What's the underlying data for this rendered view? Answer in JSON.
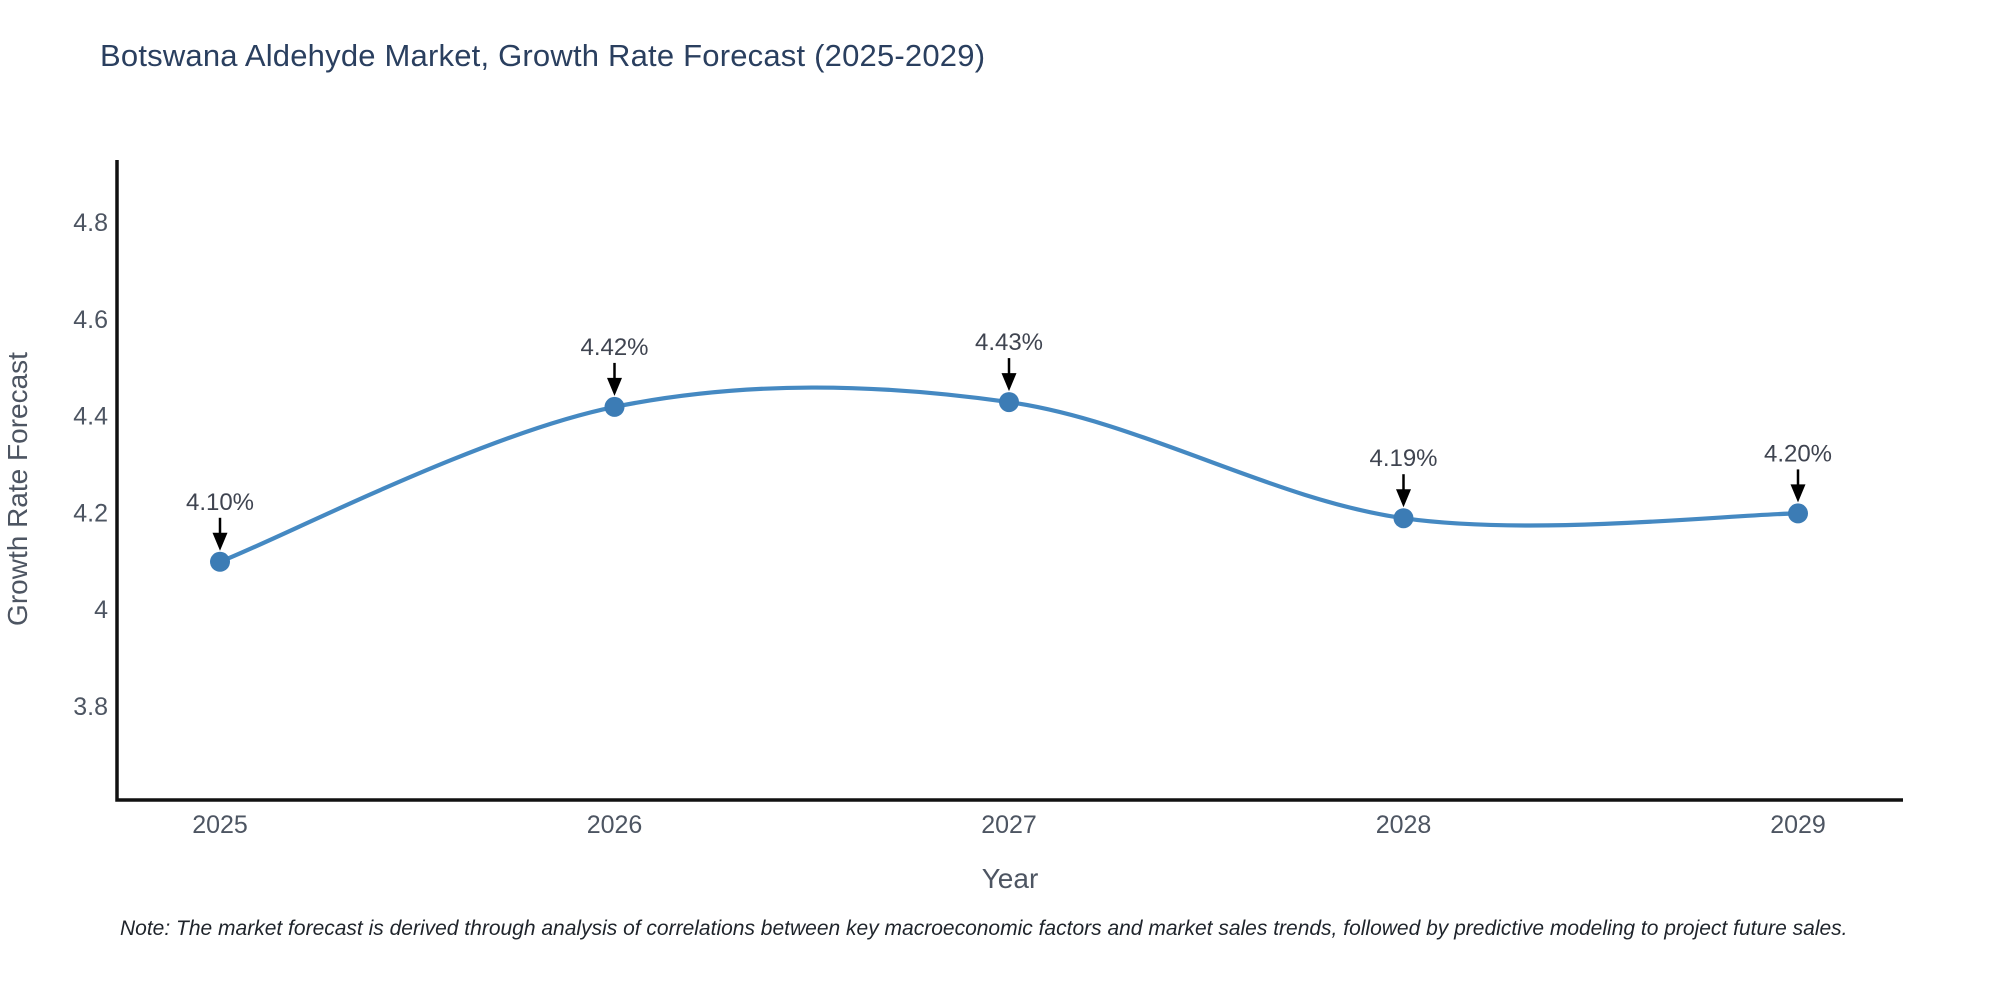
{
  "chart_data": {
    "type": "line",
    "line_shape": "spline",
    "title": "Botswana Aldehyde Market, Growth Rate Forecast (2025-2029)",
    "xlabel": "Year",
    "ylabel": "Growth Rate Forecast",
    "categories": [
      "2025",
      "2026",
      "2027",
      "2028",
      "2029"
    ],
    "series": [
      {
        "name": "Growth Rate Forecast",
        "values": [
          4.1,
          4.42,
          4.43,
          4.19,
          4.2
        ],
        "point_labels": [
          "4.10%",
          "4.42%",
          "4.43%",
          "4.19%",
          "4.20%"
        ]
      }
    ],
    "yticks": [
      4.8,
      4.6,
      4.4,
      4.2,
      4,
      3.8
    ],
    "ytick_labels": [
      "4.8",
      "4.6",
      "4.4",
      "4.2",
      "4",
      "3.8"
    ],
    "yaxis_range": [
      3.6,
      4.93
    ],
    "grid": "off",
    "legend": "none",
    "annotations_style": "value labels with downward black arrows above each point",
    "note": "Note: The market forecast is derived through analysis of correlations between key macroeconomic factors and market sales trends, followed by predictive modeling to project future sales.",
    "colors": {
      "line": "#4589c2",
      "marker": "#3c7cb5",
      "axis": "#111111",
      "title": "#2a3f5f",
      "tick": "#4d5562",
      "annotation": "#3f4450",
      "arrow": "#000000",
      "note_text": "#1f242b",
      "background": "#ffffff"
    }
  }
}
